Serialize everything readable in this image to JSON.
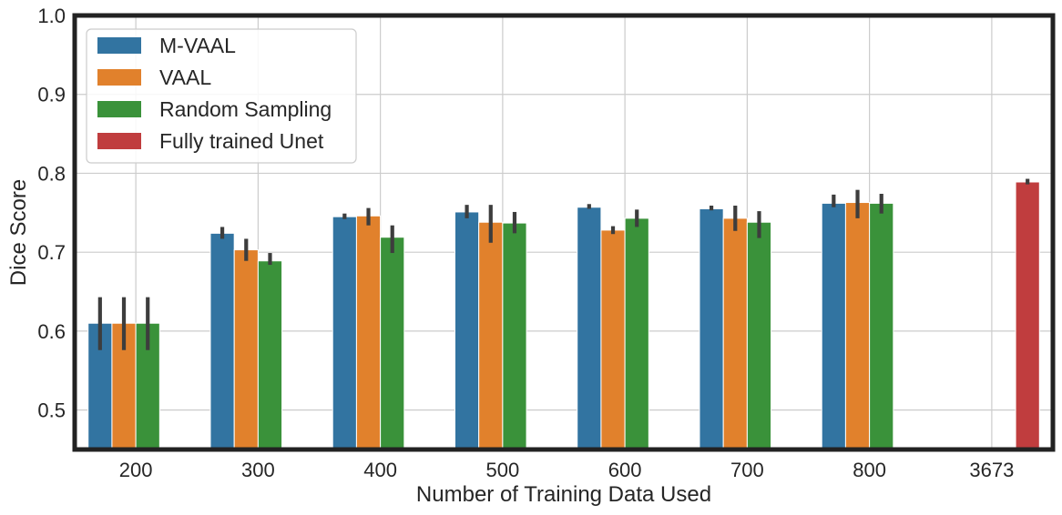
{
  "chart_data": {
    "type": "bar",
    "title": "",
    "xlabel": "Number of Training Data Used",
    "ylabel": "Dice Score",
    "ylim": [
      0.45,
      1.0
    ],
    "yticks": [
      "0.5",
      "0.6",
      "0.7",
      "0.8",
      "0.9",
      "1.0"
    ],
    "grid": true,
    "legend_position": "top-left",
    "categories": [
      "200",
      "300",
      "400",
      "500",
      "600",
      "700",
      "800",
      "3673"
    ],
    "series": [
      {
        "name": "M-VAAL",
        "color": "#3274a1",
        "values": [
          0.61,
          0.724,
          0.745,
          0.751,
          0.757,
          0.755,
          0.762,
          null
        ],
        "error_low": [
          0.576,
          0.717,
          0.742,
          0.743,
          0.755,
          0.753,
          0.757,
          null
        ],
        "error_high": [
          0.643,
          0.732,
          0.749,
          0.76,
          0.761,
          0.759,
          0.773,
          null
        ]
      },
      {
        "name": "VAAL",
        "color": "#e1812c",
        "values": [
          0.61,
          0.703,
          0.746,
          0.738,
          0.728,
          0.743,
          0.763,
          null
        ],
        "error_low": [
          0.576,
          0.689,
          0.734,
          0.712,
          0.723,
          0.727,
          0.743,
          null
        ],
        "error_high": [
          0.643,
          0.717,
          0.756,
          0.76,
          0.733,
          0.759,
          0.779,
          null
        ]
      },
      {
        "name": "Random Sampling",
        "color": "#3a923a",
        "values": [
          0.61,
          0.689,
          0.719,
          0.737,
          0.743,
          0.738,
          0.762,
          null
        ],
        "error_low": [
          0.576,
          0.684,
          0.699,
          0.724,
          0.732,
          0.718,
          0.749,
          null
        ],
        "error_high": [
          0.643,
          0.699,
          0.734,
          0.751,
          0.754,
          0.752,
          0.774,
          null
        ]
      },
      {
        "name": "Fully trained Unet",
        "color": "#c03d3e",
        "values": [
          null,
          null,
          null,
          null,
          null,
          null,
          null,
          0.789
        ],
        "error_low": [
          null,
          null,
          null,
          null,
          null,
          null,
          null,
          0.786
        ],
        "error_high": [
          null,
          null,
          null,
          null,
          null,
          null,
          null,
          0.793
        ]
      }
    ]
  }
}
